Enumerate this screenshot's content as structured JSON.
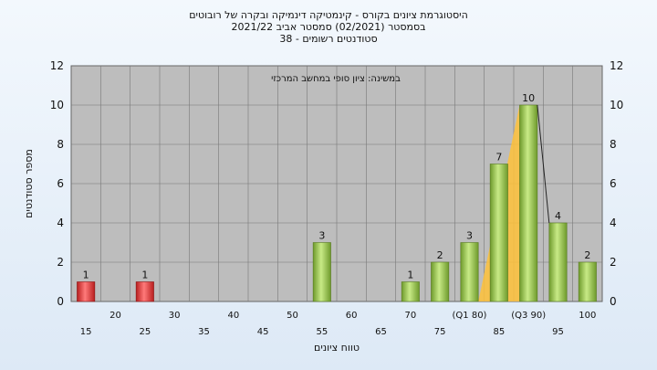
{
  "chart_data": {
    "type": "bar",
    "title_lines": [
      "היסטוגרמת ציונים בקורס - קינמטיקה דינמיקה ובקרה של רובוטים",
      "בסמסטר  (02/2021)  סמסטר אביב 2021/22",
      "סטודנטים רשומים - 38"
    ],
    "xlabel": "טווח ציונים",
    "ylabel": "מספר סטודנטים",
    "annotation": "במשינה: ציון סופי במחשב המרכזי",
    "ylim": [
      0,
      12
    ],
    "yticks": [
      0,
      2,
      4,
      6,
      8,
      10,
      12
    ],
    "xticks_lower": [
      "15",
      "25",
      "35",
      "45",
      "55",
      "65",
      "75",
      "85",
      "95"
    ],
    "xticks_upper": [
      "20",
      "30",
      "40",
      "50",
      "60",
      "70",
      "80",
      "90",
      "100"
    ],
    "quartile_labels": [
      {
        "category": "80",
        "text": "(Q1 80)"
      },
      {
        "category": "90",
        "text": "(Q3 90)"
      }
    ],
    "categories": [
      "15",
      "20",
      "25",
      "30",
      "35",
      "40",
      "45",
      "50",
      "55",
      "60",
      "65",
      "70",
      "75",
      "80",
      "85",
      "90",
      "95",
      "100"
    ],
    "values": [
      1,
      0,
      1,
      0,
      0,
      0,
      0,
      0,
      3,
      0,
      0,
      1,
      2,
      3,
      7,
      10,
      4,
      2
    ],
    "fail_threshold": 55,
    "grid": true,
    "colors": {
      "fail": "#e03a3a",
      "pass": "#8fc24a",
      "plot_bg": "#bdbdbd",
      "band": "#ffc23a"
    }
  }
}
